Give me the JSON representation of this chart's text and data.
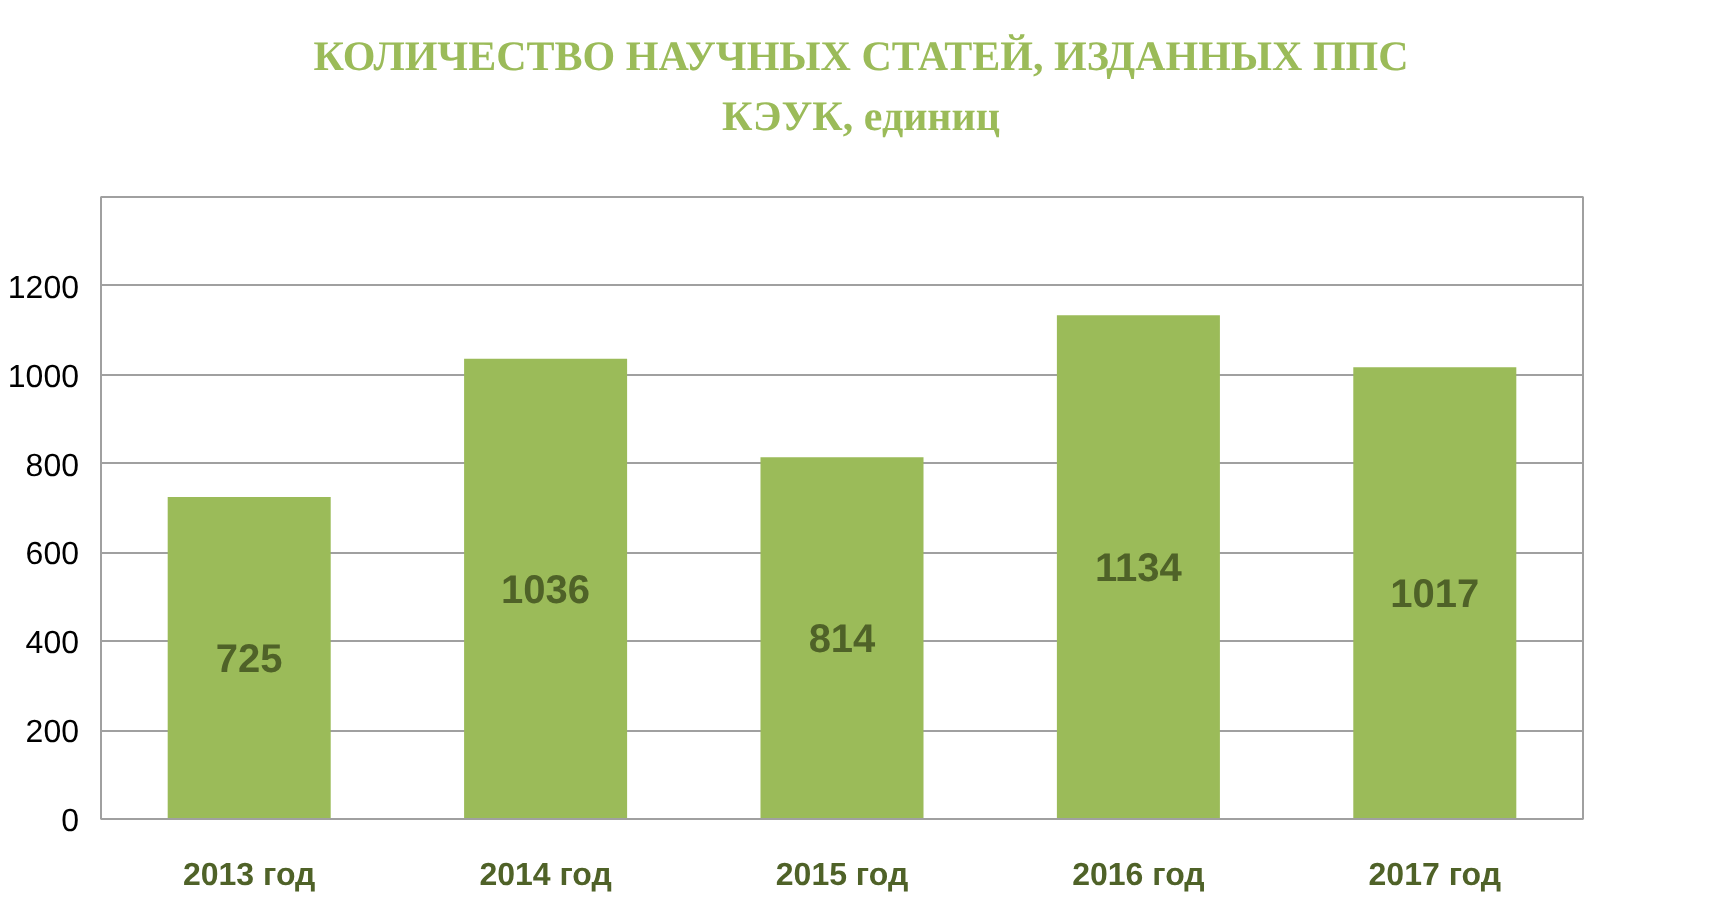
{
  "chart_data": {
    "type": "bar",
    "title": "КОЛИЧЕСТВО НАУЧНЫХ СТАТЕЙ, ИЗДАННЫХ ППС КЭУК, единиц",
    "categories": [
      "2013 год",
      "2014 год",
      "2015 год",
      "2016 год",
      "2017 год"
    ],
    "values": [
      725,
      1036,
      814,
      1134,
      1017
    ],
    "color": "#9bbb59",
    "ylim": [
      0,
      1400
    ],
    "yticks": [
      0,
      200,
      400,
      600,
      800,
      1000,
      1200
    ],
    "grid": "y",
    "data_labels": true
  }
}
